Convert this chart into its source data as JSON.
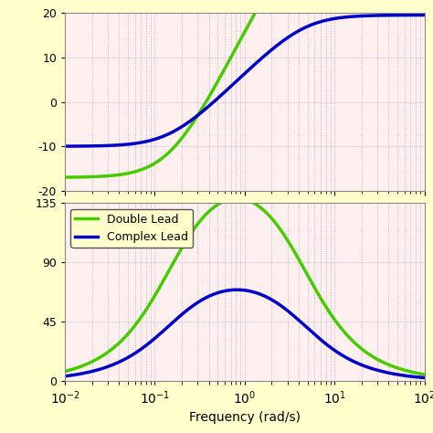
{
  "fig_bg_color": "#ffffcc",
  "plot_bg_color": "#fff0f0",
  "freq_range": [
    0.01,
    100
  ],
  "mag_ylim": [
    -20,
    20
  ],
  "mag_yticks": [
    -20,
    -10,
    0,
    10,
    20
  ],
  "phase_ylim": [
    0,
    135
  ],
  "phase_yticks": [
    0,
    45,
    90,
    135
  ],
  "double_lead_color": "#44cc00",
  "complex_lead_color": "#0000cc",
  "line_width": 2.5,
  "xlabel": "Frequency (rad/s)",
  "legend_labels": [
    "Double Lead",
    "Complex Lead"
  ],
  "dot_color": "#9999bb",
  "dot_linewidth": 0.5,
  "spine_color": "#888888",
  "legend_facecolor": "#ffffcc",
  "tick_fontsize": 9,
  "xlabel_fontsize": 10
}
